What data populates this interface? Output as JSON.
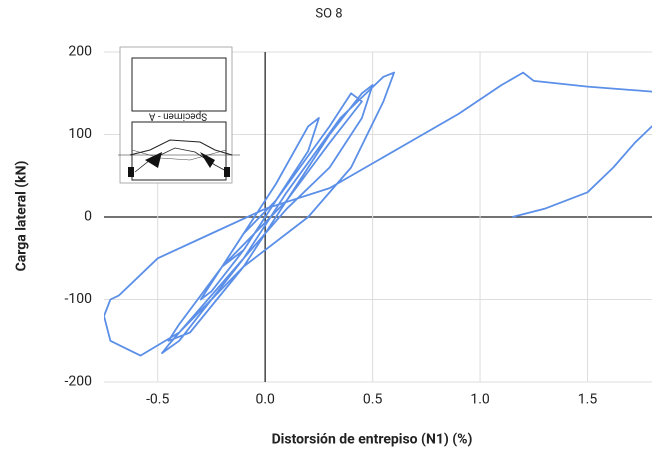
{
  "chart_data": {
    "type": "line",
    "title": "SO 8",
    "x_label": "Distorsión de entrepiso (N1) (%)",
    "y_label": "Carga lateral (kN)",
    "inset_caption": "Specimen - A",
    "xlim": [
      -0.75,
      1.8
    ],
    "ylim": [
      -200,
      200
    ],
    "xticks": [
      -0.5,
      {
        "value": 0,
        "label": "0.0"
      },
      0.5,
      {
        "value": 1,
        "label": "1.0"
      },
      1.5
    ],
    "yticks": [
      -200,
      -100,
      0,
      100,
      200
    ],
    "grid": true,
    "x": [
      0,
      0.1,
      0.15,
      0.05,
      -0.1,
      -0.2,
      -0.1,
      0,
      0.2,
      0.25,
      0.2,
      0.05,
      -0.15,
      -0.3,
      -0.25,
      -0.1,
      0.05,
      0.3,
      0.4,
      0.45,
      0.3,
      0.1,
      -0.2,
      -0.4,
      -0.45,
      -0.35,
      -0.1,
      0.1,
      0.3,
      0.45,
      0.5,
      0.45,
      0.3,
      0.1,
      -0.2,
      -0.45,
      -0.48,
      -0.4,
      -0.1,
      0.1,
      0.35,
      0.55,
      0.6,
      0.55,
      0.4,
      0.2,
      -0.1,
      -0.4,
      -0.58,
      -0.72,
      -0.75,
      -0.72,
      -0.68,
      -0.5,
      -0.25,
      0,
      0.3,
      0.5,
      0.7,
      0.9,
      1.1,
      1.2,
      1.25,
      1.5,
      1.8,
      1.95,
      1.95,
      1.8,
      1.72,
      1.62,
      1.5,
      1.3,
      1.15
    ],
    "series": [
      {
        "name": "SO 8",
        "color": "#5b8fe8",
        "values": [
          0,
          40,
          60,
          20,
          -20,
          -60,
          -40,
          0,
          80,
          120,
          110,
          40,
          -40,
          -100,
          -90,
          -40,
          20,
          110,
          150,
          140,
          90,
          20,
          -60,
          -130,
          -150,
          -140,
          -60,
          20,
          100,
          150,
          160,
          120,
          60,
          10,
          -80,
          -155,
          -165,
          -150,
          -50,
          30,
          120,
          170,
          175,
          140,
          60,
          0,
          -60,
          -140,
          -168,
          -150,
          -120,
          -100,
          -95,
          -50,
          -20,
          10,
          35,
          65,
          95,
          125,
          160,
          175,
          165,
          158,
          152,
          150,
          115,
          110,
          90,
          60,
          30,
          10,
          0
        ]
      }
    ]
  }
}
